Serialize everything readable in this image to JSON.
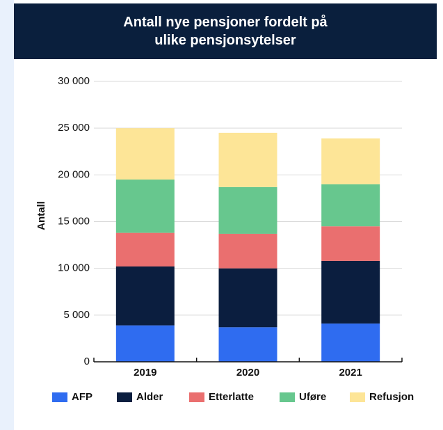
{
  "chart_data": {
    "type": "stacked-bar",
    "title": "Antall nye pensjoner fordelt på ulike pensjonsytelser",
    "y_label": "Antall",
    "categories": [
      "2019",
      "2020",
      "2021"
    ],
    "series": [
      {
        "name": "AFP",
        "color": "#2f6cf0",
        "values": [
          3900,
          3700,
          4100
        ]
      },
      {
        "name": "Alder",
        "color": "#0b1e3f",
        "values": [
          6300,
          6300,
          6700
        ]
      },
      {
        "name": "Etterlatte",
        "color": "#ea6f6f",
        "values": [
          3600,
          3700,
          3700
        ]
      },
      {
        "name": "Uføre",
        "color": "#67c78e",
        "values": [
          5700,
          5000,
          4500
        ]
      },
      {
        "name": "Refusjon",
        "color": "#fde597",
        "values": [
          5500,
          5800,
          4900
        ]
      }
    ],
    "ylim": [
      0,
      30000
    ],
    "yticks": [
      0,
      {
        "value": 5000,
        "label": "5 000"
      },
      {
        "value": 10000,
        "label": "10 000"
      },
      {
        "value": 15000,
        "label": "15 000"
      },
      {
        "value": 20000,
        "label": "20 000"
      },
      {
        "value": 25000,
        "label": "25 000"
      },
      {
        "value": 30000,
        "label": "30 000"
      }
    ],
    "grid": true
  }
}
